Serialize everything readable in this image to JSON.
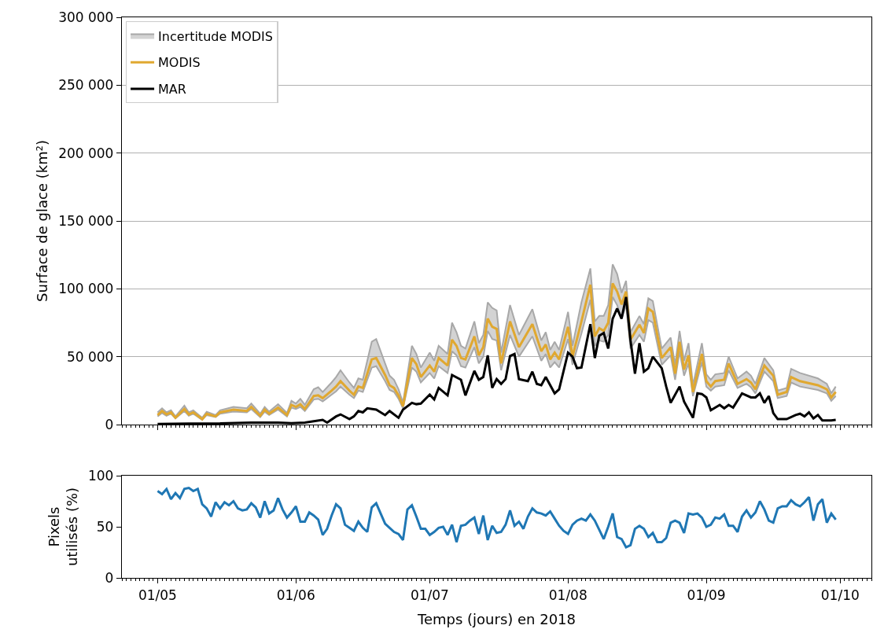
{
  "chart_data": [
    {
      "type": "line",
      "ylabel": "Surface de glace (km²)",
      "legend": "top left",
      "grid": "y",
      "tick_labels": "y",
      "xlim": [
        "2018-04-23",
        "2018-10-08"
      ],
      "xticks": [
        {
          "value": "2018-05-01",
          "label": null
        },
        {
          "value": "2018-06-01",
          "label": null
        },
        {
          "value": "2018-07-01",
          "label": null
        },
        {
          "value": "2018-08-01",
          "label": null
        },
        {
          "value": "2018-09-01",
          "label": null
        },
        {
          "value": "2018-10-01",
          "label": null
        }
      ],
      "ylim": [
        0,
        300000
      ],
      "yticks": [
        0,
        {
          "value": 50000,
          "label": "50 000"
        },
        {
          "value": 100000,
          "label": "100 000"
        },
        {
          "value": 150000,
          "label": "150 000"
        },
        {
          "value": 200000,
          "label": "200 000"
        },
        {
          "value": 250000,
          "label": "250 000"
        },
        {
          "value": 300000,
          "label": "300 000"
        }
      ],
      "series": [
        {
          "type": "line",
          "color": "#a8a8a8",
          "x": [
            "2018-05-01",
            "2018-05-02",
            "2018-05-03",
            "2018-05-04",
            "2018-05-05",
            "2018-05-07",
            "2018-05-08",
            "2018-05-09",
            "2018-05-11",
            "2018-05-12",
            "2018-05-14",
            "2018-05-15",
            "2018-05-18",
            "2018-05-21",
            "2018-05-22",
            "2018-05-24",
            "2018-05-25",
            "2018-05-26",
            "2018-05-28",
            "2018-05-30",
            "2018-05-31",
            "2018-06-01",
            "2018-06-02",
            "2018-06-03",
            "2018-06-05",
            "2018-06-06",
            "2018-06-07",
            "2018-06-09",
            "2018-06-10",
            "2018-06-11",
            "2018-06-13",
            "2018-06-14",
            "2018-06-15",
            "2018-06-16",
            "2018-06-18",
            "2018-06-19",
            "2018-06-21",
            "2018-06-22",
            "2018-06-23",
            "2018-06-24",
            "2018-06-25",
            "2018-06-27",
            "2018-06-28",
            "2018-06-29",
            "2018-07-01",
            "2018-07-02",
            "2018-07-03",
            "2018-07-05",
            "2018-07-06",
            "2018-07-07",
            "2018-07-08",
            "2018-07-09",
            "2018-07-11",
            "2018-07-12",
            "2018-07-13",
            "2018-07-14",
            "2018-07-15",
            "2018-07-16",
            "2018-07-17",
            "2018-07-19",
            "2018-07-21",
            "2018-07-24",
            "2018-07-26",
            "2018-07-27",
            "2018-07-28",
            "2018-07-29",
            "2018-07-30",
            "2018-08-01",
            "2018-08-02",
            "2018-08-04",
            "2018-08-06",
            "2018-08-07",
            "2018-08-08",
            "2018-08-09",
            "2018-08-10",
            "2018-08-11",
            "2018-08-12",
            "2018-08-13",
            "2018-08-14",
            "2018-08-15",
            "2018-08-17",
            "2018-08-18",
            "2018-08-19",
            "2018-08-20",
            "2018-08-22",
            "2018-08-24",
            "2018-08-25",
            "2018-08-26",
            "2018-08-27",
            "2018-08-28",
            "2018-08-29",
            "2018-08-31",
            "2018-09-01",
            "2018-09-02",
            "2018-09-03",
            "2018-09-05",
            "2018-09-06",
            "2018-09-08",
            "2018-09-10",
            "2018-09-11",
            "2018-09-12",
            "2018-09-14",
            "2018-09-16",
            "2018-09-17",
            "2018-09-19",
            "2018-09-20",
            "2018-09-22",
            "2018-09-26",
            "2018-09-28",
            "2018-09-29",
            "2018-09-30"
          ],
          "values": [
            6000,
            8500,
            6500,
            8000,
            4500,
            10000,
            6500,
            8000,
            3500,
            7000,
            5500,
            8000,
            9500,
            9000,
            11500,
            5500,
            9500,
            7000,
            11000,
            6000,
            12500,
            11500,
            13000,
            10000,
            18500,
            19000,
            17000,
            22000,
            24500,
            28000,
            22000,
            19500,
            25000,
            24000,
            42000,
            43000,
            32000,
            25500,
            24000,
            19000,
            12000,
            42000,
            39000,
            31000,
            38000,
            34000,
            43000,
            38000,
            54000,
            51000,
            43000,
            42000,
            57000,
            45000,
            50000,
            69000,
            63000,
            62000,
            40000,
            66000,
            50000,
            65000,
            47000,
            52000,
            42000,
            46000,
            42000,
            63000,
            44000,
            67000,
            92000,
            58000,
            62000,
            61000,
            66000,
            94000,
            88000,
            78000,
            88000,
            56000,
            66000,
            61000,
            77000,
            75000,
            44000,
            51000,
            33000,
            54000,
            36000,
            45000,
            21000,
            46000,
            28000,
            25000,
            28000,
            29000,
            40000,
            27000,
            30000,
            27500,
            23000,
            39000,
            32000,
            19500,
            21000,
            31000,
            28000,
            25500,
            23000,
            17500,
            21000
          ]
        },
        {
          "name": "Incertitude MODIS",
          "type": "area",
          "color": "#a8a8a8",
          "x": [
            "2018-05-01",
            "2018-05-02",
            "2018-05-03",
            "2018-05-04",
            "2018-05-05",
            "2018-05-07",
            "2018-05-08",
            "2018-05-09",
            "2018-05-11",
            "2018-05-12",
            "2018-05-14",
            "2018-05-15",
            "2018-05-18",
            "2018-05-21",
            "2018-05-22",
            "2018-05-24",
            "2018-05-25",
            "2018-05-26",
            "2018-05-28",
            "2018-05-30",
            "2018-05-31",
            "2018-06-01",
            "2018-06-02",
            "2018-06-03",
            "2018-06-05",
            "2018-06-06",
            "2018-06-07",
            "2018-06-09",
            "2018-06-10",
            "2018-06-11",
            "2018-06-13",
            "2018-06-14",
            "2018-06-15",
            "2018-06-16",
            "2018-06-18",
            "2018-06-19",
            "2018-06-21",
            "2018-06-22",
            "2018-06-23",
            "2018-06-24",
            "2018-06-25",
            "2018-06-27",
            "2018-06-28",
            "2018-06-29",
            "2018-07-01",
            "2018-07-02",
            "2018-07-03",
            "2018-07-05",
            "2018-07-06",
            "2018-07-07",
            "2018-07-08",
            "2018-07-09",
            "2018-07-11",
            "2018-07-12",
            "2018-07-13",
            "2018-07-14",
            "2018-07-15",
            "2018-07-16",
            "2018-07-17",
            "2018-07-19",
            "2018-07-21",
            "2018-07-24",
            "2018-07-26",
            "2018-07-27",
            "2018-07-28",
            "2018-07-29",
            "2018-07-30",
            "2018-08-01",
            "2018-08-02",
            "2018-08-04",
            "2018-08-06",
            "2018-08-07",
            "2018-08-08",
            "2018-08-09",
            "2018-08-10",
            "2018-08-11",
            "2018-08-12",
            "2018-08-13",
            "2018-08-14",
            "2018-08-15",
            "2018-08-17",
            "2018-08-18",
            "2018-08-19",
            "2018-08-20",
            "2018-08-22",
            "2018-08-24",
            "2018-08-25",
            "2018-08-26",
            "2018-08-27",
            "2018-08-28",
            "2018-08-29",
            "2018-08-31",
            "2018-09-01",
            "2018-09-02",
            "2018-09-03",
            "2018-09-05",
            "2018-09-06",
            "2018-09-08",
            "2018-09-10",
            "2018-09-11",
            "2018-09-12",
            "2018-09-14",
            "2018-09-16",
            "2018-09-17",
            "2018-09-19",
            "2018-09-20",
            "2018-09-22",
            "2018-09-26",
            "2018-09-28",
            "2018-09-29",
            "2018-09-30"
          ],
          "values": [
            9000,
            12000,
            9000,
            10500,
            6000,
            14000,
            9000,
            10500,
            5000,
            9500,
            7000,
            10500,
            13000,
            12000,
            15500,
            8000,
            13000,
            9500,
            15000,
            8500,
            17500,
            15500,
            19000,
            14500,
            26000,
            27500,
            24000,
            31000,
            35000,
            40000,
            31000,
            27000,
            34000,
            33000,
            61000,
            63000,
            45000,
            36000,
            33000,
            26000,
            16000,
            58000,
            52000,
            42000,
            53000,
            47000,
            58000,
            52000,
            75000,
            68000,
            58000,
            56000,
            76000,
            60000,
            66000,
            90000,
            86000,
            84000,
            53000,
            88000,
            66000,
            85000,
            62000,
            68000,
            55000,
            61000,
            55000,
            83000,
            58000,
            90000,
            115000,
            76000,
            80000,
            80000,
            88000,
            118000,
            111000,
            97000,
            106000,
            68000,
            80000,
            74000,
            93000,
            91000,
            56000,
            64000,
            44000,
            69000,
            47000,
            60000,
            29000,
            60000,
            37000,
            33000,
            37000,
            38000,
            50000,
            34000,
            39000,
            36000,
            30000,
            49000,
            40000,
            25000,
            27000,
            41000,
            38000,
            34000,
            30000,
            23000,
            28000
          ]
        },
        {
          "name": "MODIS",
          "color": "#e0a830",
          "x": [
            "2018-05-01",
            "2018-05-02",
            "2018-05-03",
            "2018-05-04",
            "2018-05-05",
            "2018-05-07",
            "2018-05-08",
            "2018-05-09",
            "2018-05-11",
            "2018-05-12",
            "2018-05-14",
            "2018-05-15",
            "2018-05-18",
            "2018-05-21",
            "2018-05-22",
            "2018-05-24",
            "2018-05-25",
            "2018-05-26",
            "2018-05-28",
            "2018-05-30",
            "2018-05-31",
            "2018-06-01",
            "2018-06-02",
            "2018-06-03",
            "2018-06-05",
            "2018-06-06",
            "2018-06-07",
            "2018-06-09",
            "2018-06-10",
            "2018-06-11",
            "2018-06-13",
            "2018-06-14",
            "2018-06-15",
            "2018-06-16",
            "2018-06-18",
            "2018-06-19",
            "2018-06-21",
            "2018-06-22",
            "2018-06-23",
            "2018-06-24",
            "2018-06-25",
            "2018-06-27",
            "2018-06-28",
            "2018-06-29",
            "2018-07-01",
            "2018-07-02",
            "2018-07-03",
            "2018-07-05",
            "2018-07-06",
            "2018-07-07",
            "2018-07-08",
            "2018-07-09",
            "2018-07-11",
            "2018-07-12",
            "2018-07-13",
            "2018-07-14",
            "2018-07-15",
            "2018-07-16",
            "2018-07-17",
            "2018-07-19",
            "2018-07-21",
            "2018-07-24",
            "2018-07-26",
            "2018-07-27",
            "2018-07-28",
            "2018-07-29",
            "2018-07-30",
            "2018-08-01",
            "2018-08-02",
            "2018-08-04",
            "2018-08-06",
            "2018-08-07",
            "2018-08-08",
            "2018-08-09",
            "2018-08-10",
            "2018-08-11",
            "2018-08-12",
            "2018-08-13",
            "2018-08-14",
            "2018-08-15",
            "2018-08-17",
            "2018-08-18",
            "2018-08-19",
            "2018-08-20",
            "2018-08-22",
            "2018-08-24",
            "2018-08-25",
            "2018-08-26",
            "2018-08-27",
            "2018-08-28",
            "2018-08-29",
            "2018-08-31",
            "2018-09-01",
            "2018-09-02",
            "2018-09-03",
            "2018-09-05",
            "2018-09-06",
            "2018-09-08",
            "2018-09-10",
            "2018-09-11",
            "2018-09-12",
            "2018-09-14",
            "2018-09-16",
            "2018-09-17",
            "2018-09-19",
            "2018-09-20",
            "2018-09-22",
            "2018-09-26",
            "2018-09-28",
            "2018-09-29",
            "2018-09-30"
          ],
          "values": [
            7000,
            10000,
            7500,
            9000,
            5000,
            11500,
            7500,
            9000,
            4000,
            8000,
            6000,
            9000,
            11000,
            10000,
            13000,
            6500,
            11000,
            8000,
            12500,
            7000,
            14500,
            13000,
            15000,
            11500,
            21000,
            21500,
            19500,
            25000,
            28000,
            32000,
            25000,
            22000,
            28000,
            27000,
            48000,
            49000,
            36500,
            29000,
            27000,
            21500,
            13500,
            49000,
            44500,
            35000,
            43500,
            39000,
            49000,
            43500,
            62500,
            58000,
            49000,
            48000,
            65000,
            51000,
            57000,
            78000,
            72000,
            70500,
            45000,
            76000,
            57000,
            74000,
            54000,
            59000,
            48000,
            53000,
            48000,
            72000,
            50000,
            76000,
            103000,
            65000,
            71000,
            69000,
            75000,
            104000,
            98000,
            88500,
            98000,
            62500,
            73500,
            67500,
            85500,
            83000,
            49000,
            57000,
            37500,
            61000,
            40500,
            51000,
            24000,
            52000,
            32000,
            28000,
            32000,
            33000,
            45000,
            30000,
            33500,
            31000,
            26000,
            43500,
            36000,
            22000,
            24000,
            35000,
            32000,
            29000,
            26000,
            20000,
            24000
          ]
        },
        {
          "name": "MAR",
          "color": "#000000",
          "x": [
            "2018-05-01",
            "2018-05-08",
            "2018-05-15",
            "2018-05-22",
            "2018-05-28",
            "2018-05-31",
            "2018-06-03",
            "2018-06-05",
            "2018-06-07",
            "2018-06-08",
            "2018-06-10",
            "2018-06-11",
            "2018-06-13",
            "2018-06-14",
            "2018-06-15",
            "2018-06-16",
            "2018-06-17",
            "2018-06-19",
            "2018-06-21",
            "2018-06-22",
            "2018-06-24",
            "2018-06-25",
            "2018-06-27",
            "2018-06-28",
            "2018-06-29",
            "2018-07-01",
            "2018-07-02",
            "2018-07-03",
            "2018-07-05",
            "2018-07-06",
            "2018-07-08",
            "2018-07-09",
            "2018-07-11",
            "2018-07-12",
            "2018-07-13",
            "2018-07-14",
            "2018-07-15",
            "2018-07-16",
            "2018-07-17",
            "2018-07-18",
            "2018-07-19",
            "2018-07-20",
            "2018-07-21",
            "2018-07-23",
            "2018-07-24",
            "2018-07-25",
            "2018-07-26",
            "2018-07-27",
            "2018-07-29",
            "2018-07-30",
            "2018-08-01",
            "2018-08-02",
            "2018-08-03",
            "2018-08-04",
            "2018-08-06",
            "2018-08-07",
            "2018-08-08",
            "2018-08-09",
            "2018-08-10",
            "2018-08-11",
            "2018-08-12",
            "2018-08-13",
            "2018-08-14",
            "2018-08-15",
            "2018-08-16",
            "2018-08-17",
            "2018-08-18",
            "2018-08-19",
            "2018-08-20",
            "2018-08-22",
            "2018-08-23",
            "2018-08-24",
            "2018-08-26",
            "2018-08-27",
            "2018-08-29",
            "2018-08-30",
            "2018-08-31",
            "2018-09-01",
            "2018-09-02",
            "2018-09-04",
            "2018-09-05",
            "2018-09-06",
            "2018-09-07",
            "2018-09-09",
            "2018-09-11",
            "2018-09-12",
            "2018-09-13",
            "2018-09-14",
            "2018-09-15",
            "2018-09-16",
            "2018-09-17",
            "2018-09-19",
            "2018-09-21",
            "2018-09-22",
            "2018-09-23",
            "2018-09-24",
            "2018-09-25",
            "2018-09-26",
            "2018-09-27",
            "2018-09-29",
            "2018-09-30"
          ],
          "values": [
            500,
            700,
            800,
            1500,
            1500,
            1000,
            1500,
            2500,
            3500,
            1500,
            6000,
            7500,
            4000,
            6000,
            10000,
            9000,
            12000,
            11000,
            7000,
            10000,
            5000,
            11000,
            16000,
            15000,
            15500,
            22000,
            18500,
            27000,
            21500,
            36500,
            33000,
            21500,
            39500,
            33000,
            35000,
            51000,
            27000,
            33500,
            30000,
            33500,
            50500,
            52000,
            33500,
            32000,
            39000,
            30000,
            29000,
            35000,
            23000,
            26000,
            53000,
            50000,
            41500,
            42000,
            74000,
            49000,
            65500,
            67500,
            56000,
            78000,
            85500,
            78000,
            94000,
            62000,
            37500,
            60000,
            39000,
            41500,
            50000,
            41500,
            28000,
            16000,
            28000,
            17000,
            5000,
            23000,
            22500,
            20000,
            10500,
            14500,
            12000,
            14500,
            12500,
            23000,
            20000,
            20000,
            23000,
            16000,
            21000,
            8500,
            4000,
            4000,
            7000,
            8000,
            6000,
            9000,
            4500,
            7000,
            3000,
            3000,
            3500
          ]
        }
      ]
    },
    {
      "type": "line",
      "xlabel": "Temps (jours) en 2018",
      "ylabel": "Pixels\nutilisés (%)",
      "xlim": [
        "2018-04-23",
        "2018-10-08"
      ],
      "xticks": [
        {
          "value": "2018-05-01",
          "label": "01/05"
        },
        {
          "value": "2018-06-01",
          "label": "01/06"
        },
        {
          "value": "2018-07-01",
          "label": "01/07"
        },
        {
          "value": "2018-08-01",
          "label": "01/08"
        },
        {
          "value": "2018-09-01",
          "label": "01/09"
        },
        {
          "value": "2018-10-01",
          "label": "01/10"
        }
      ],
      "ylim": [
        0,
        100
      ],
      "yticks": [
        0,
        50,
        100
      ],
      "series": [
        {
          "color": "#1f77b4",
          "x": [
            "2018-05-01",
            "2018-05-02",
            "2018-05-03",
            "2018-05-04",
            "2018-05-05",
            "2018-05-06",
            "2018-05-07",
            "2018-05-08",
            "2018-05-09",
            "2018-05-10",
            "2018-05-11",
            "2018-05-12",
            "2018-05-13",
            "2018-05-14",
            "2018-05-15",
            "2018-05-16",
            "2018-05-17",
            "2018-05-18",
            "2018-05-19",
            "2018-05-20",
            "2018-05-21",
            "2018-05-22",
            "2018-05-23",
            "2018-05-24",
            "2018-05-25",
            "2018-05-26",
            "2018-05-27",
            "2018-05-28",
            "2018-05-29",
            "2018-05-30",
            "2018-05-31",
            "2018-06-01",
            "2018-06-02",
            "2018-06-03",
            "2018-06-04",
            "2018-06-05",
            "2018-06-06",
            "2018-06-07",
            "2018-06-08",
            "2018-06-09",
            "2018-06-10",
            "2018-06-11",
            "2018-06-12",
            "2018-06-13",
            "2018-06-14",
            "2018-06-15",
            "2018-06-16",
            "2018-06-17",
            "2018-06-18",
            "2018-06-19",
            "2018-06-20",
            "2018-06-21",
            "2018-06-22",
            "2018-06-23",
            "2018-06-24",
            "2018-06-25",
            "2018-06-26",
            "2018-06-27",
            "2018-06-28",
            "2018-06-29",
            "2018-06-30",
            "2018-07-01",
            "2018-07-02",
            "2018-07-03",
            "2018-07-04",
            "2018-07-05",
            "2018-07-06",
            "2018-07-07",
            "2018-07-08",
            "2018-07-09",
            "2018-07-10",
            "2018-07-11",
            "2018-07-12",
            "2018-07-13",
            "2018-07-14",
            "2018-07-15",
            "2018-07-16",
            "2018-07-17",
            "2018-07-18",
            "2018-07-19",
            "2018-07-20",
            "2018-07-21",
            "2018-07-22",
            "2018-07-23",
            "2018-07-24",
            "2018-07-25",
            "2018-07-26",
            "2018-07-27",
            "2018-07-28",
            "2018-07-29",
            "2018-07-30",
            "2018-07-31",
            "2018-08-01",
            "2018-08-02",
            "2018-08-03",
            "2018-08-04",
            "2018-08-05",
            "2018-08-06",
            "2018-08-07",
            "2018-08-08",
            "2018-08-09",
            "2018-08-10",
            "2018-08-11",
            "2018-08-12",
            "2018-08-13",
            "2018-08-14",
            "2018-08-15",
            "2018-08-16",
            "2018-08-17",
            "2018-08-18",
            "2018-08-19",
            "2018-08-20",
            "2018-08-21",
            "2018-08-22",
            "2018-08-23",
            "2018-08-24",
            "2018-08-25",
            "2018-08-26",
            "2018-08-27",
            "2018-08-28",
            "2018-08-29",
            "2018-08-30",
            "2018-08-31",
            "2018-09-01",
            "2018-09-02",
            "2018-09-03",
            "2018-09-04",
            "2018-09-05",
            "2018-09-06",
            "2018-09-07",
            "2018-09-08",
            "2018-09-09",
            "2018-09-10",
            "2018-09-11",
            "2018-09-12",
            "2018-09-13",
            "2018-09-14",
            "2018-09-15",
            "2018-09-16",
            "2018-09-17",
            "2018-09-18",
            "2018-09-19",
            "2018-09-20",
            "2018-09-21",
            "2018-09-22",
            "2018-09-23",
            "2018-09-24",
            "2018-09-25",
            "2018-09-26",
            "2018-09-27",
            "2018-09-28",
            "2018-09-29",
            "2018-09-30"
          ],
          "values": [
            85,
            82,
            87,
            77,
            83,
            78,
            87,
            88,
            85,
            87,
            72,
            68,
            60,
            74,
            68,
            74,
            71,
            75,
            68,
            66,
            67,
            73,
            69,
            59,
            75,
            63,
            66,
            78,
            67,
            59,
            64,
            70,
            55,
            55,
            64,
            61,
            57,
            42,
            48,
            61,
            72,
            68,
            52,
            49,
            46,
            55,
            49,
            45,
            69,
            73,
            63,
            53,
            49,
            45,
            43,
            37,
            67,
            71,
            60,
            48,
            48,
            42,
            45,
            49,
            50,
            42,
            52,
            35,
            51,
            52,
            56,
            59,
            43,
            61,
            37,
            51,
            44,
            45,
            52,
            66,
            51,
            55,
            48,
            60,
            68,
            64,
            63,
            61,
            65,
            58,
            51,
            46,
            43,
            52,
            56,
            58,
            56,
            62,
            56,
            47,
            38,
            50,
            63,
            40,
            38,
            30,
            32,
            48,
            51,
            48,
            40,
            44,
            35,
            35,
            39,
            54,
            56,
            54,
            44,
            63,
            62,
            63,
            59,
            50,
            52,
            59,
            58,
            62,
            51,
            51,
            45,
            60,
            66,
            59,
            64,
            75,
            67,
            56,
            54,
            68,
            70,
            70,
            76,
            72,
            70,
            74,
            79,
            56,
            72,
            77,
            54,
            63,
            57
          ]
        }
      ]
    }
  ]
}
